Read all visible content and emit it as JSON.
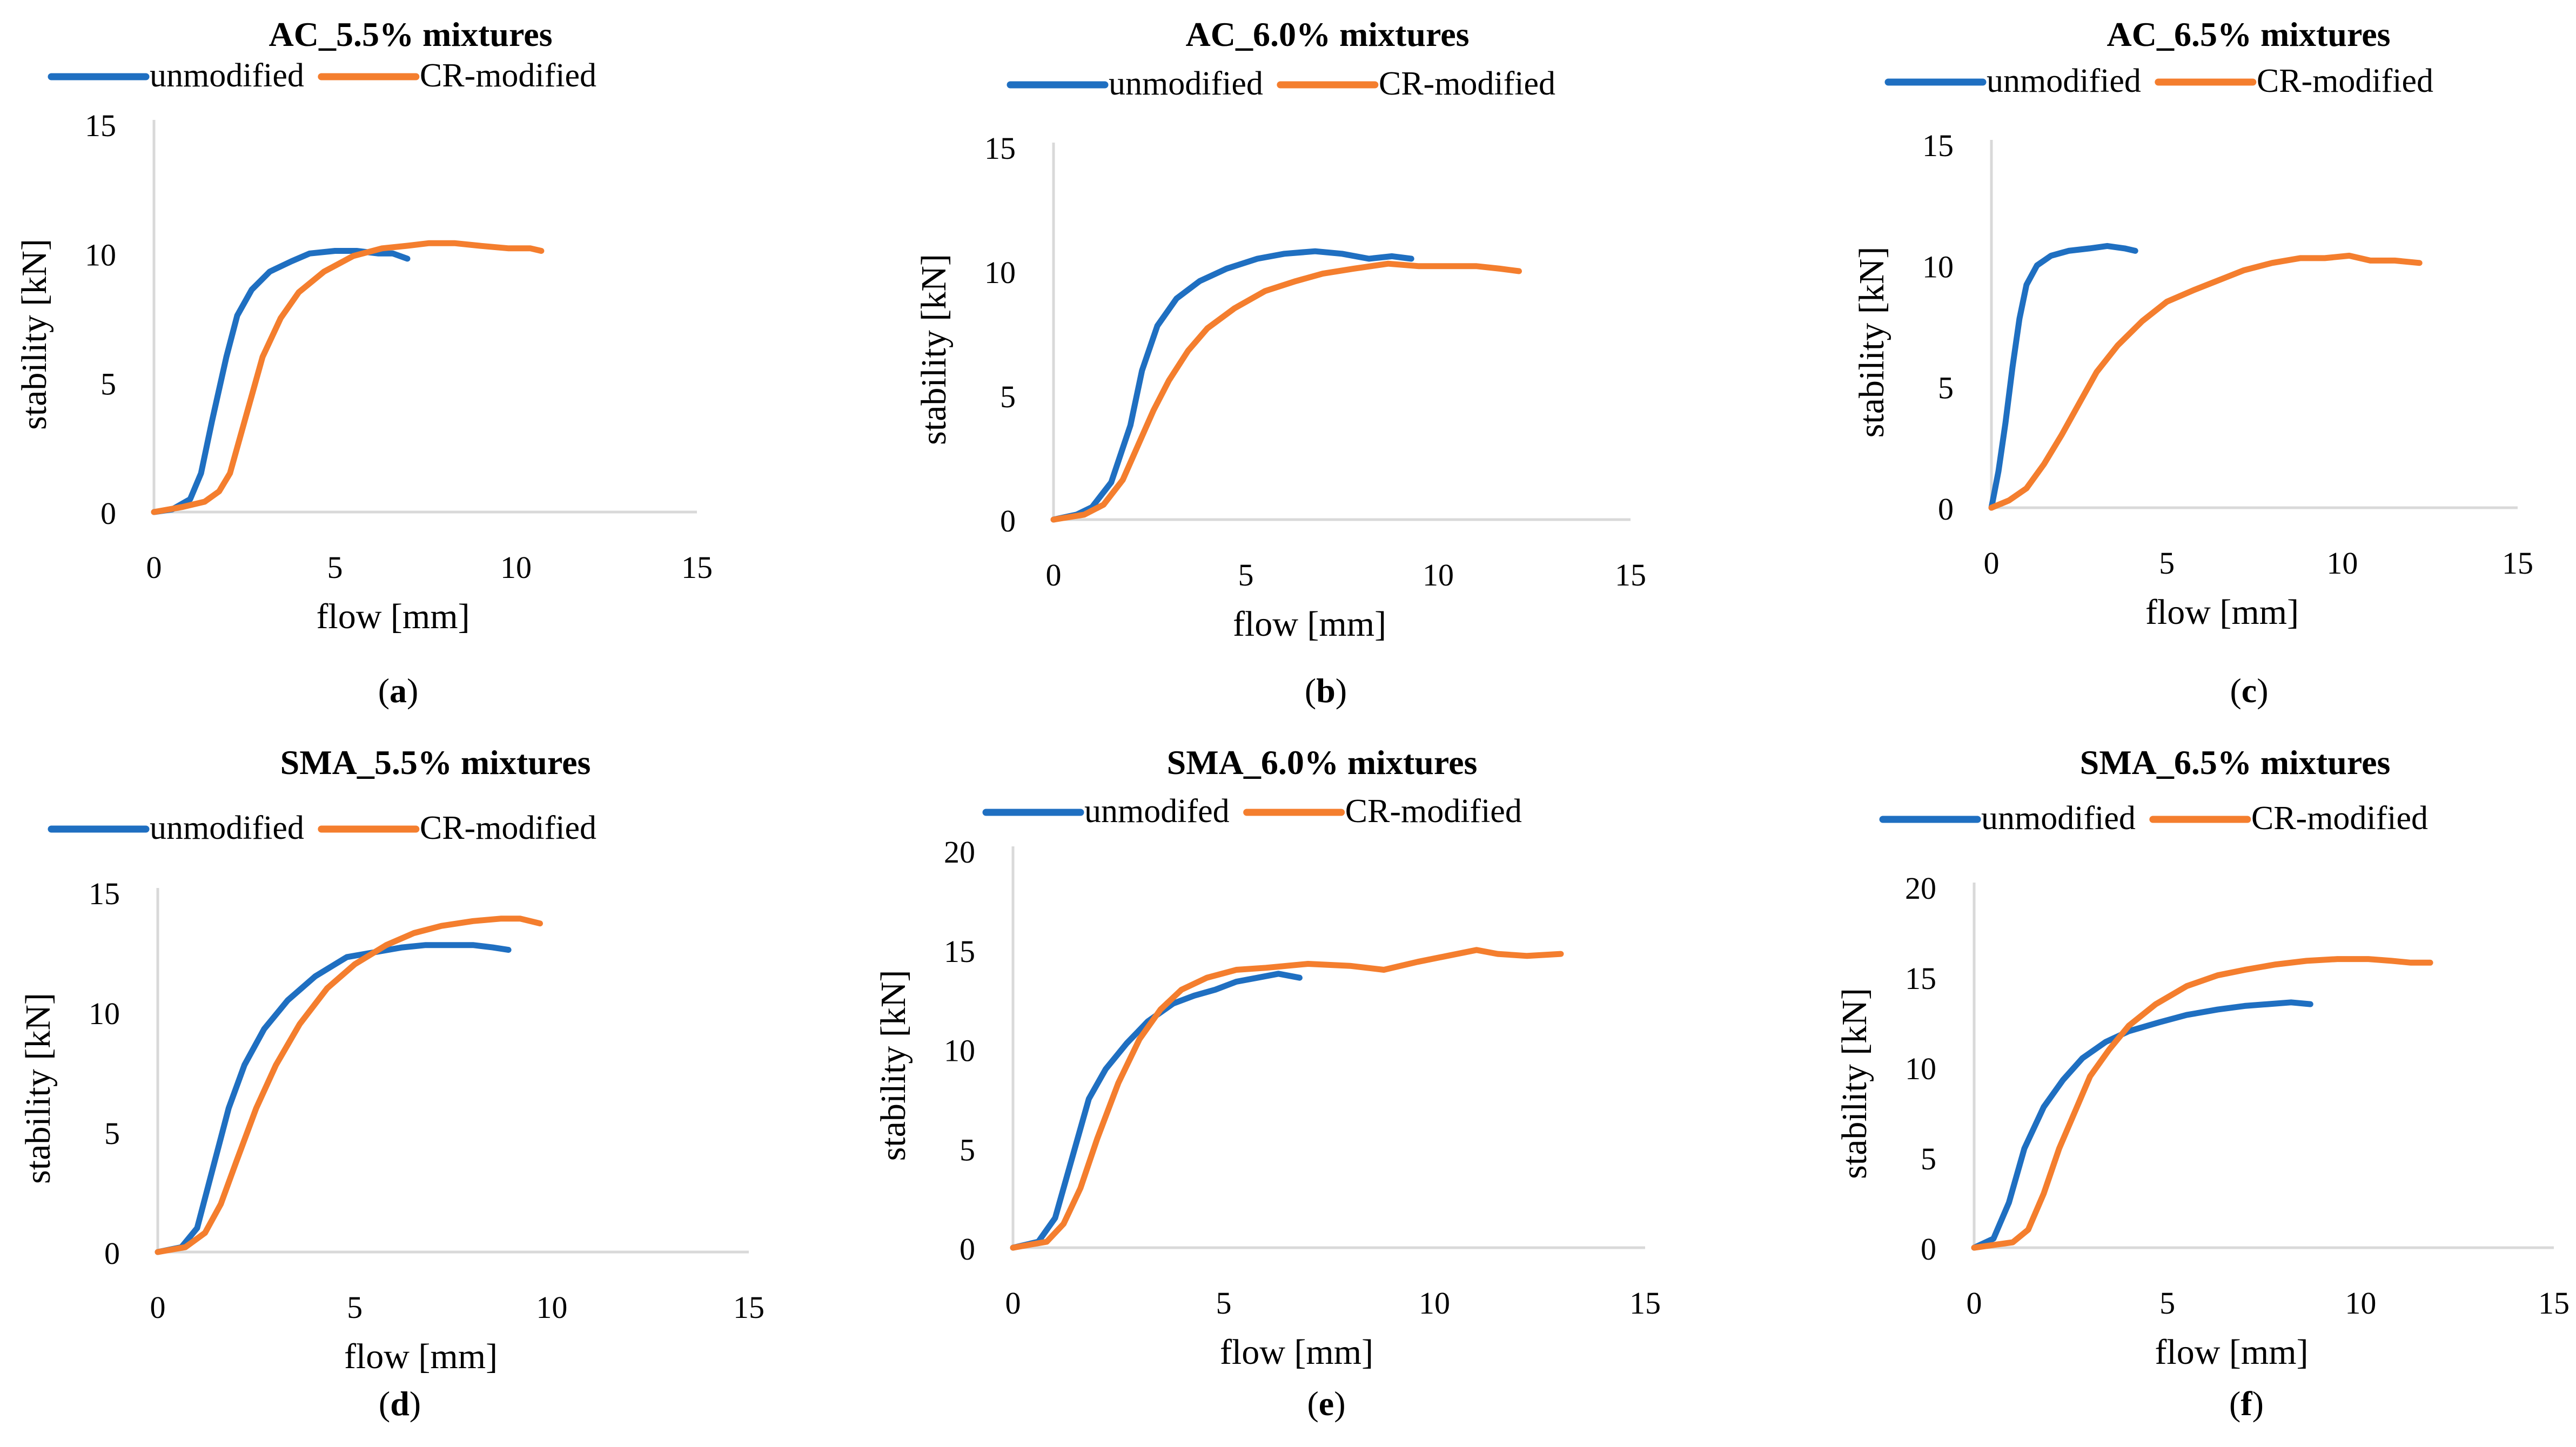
{
  "colors": {
    "unmodified": "#1F6FC1",
    "cr_modified": "#F47E2E",
    "axis": "#d9d9d9",
    "text": "#000000"
  },
  "chart_data": [
    {
      "type": "line",
      "panel_label": "a",
      "title": "AC_5.5% mixtures",
      "xlabel": "flow [mm]",
      "ylabel": "stability [kN]",
      "xlim": [
        0,
        15
      ],
      "ylim": [
        0,
        15
      ],
      "xticks": [
        0,
        5,
        10,
        15
      ],
      "yticks": [
        0,
        5,
        10,
        15
      ],
      "legend": [
        "unmodified",
        "CR-modified"
      ],
      "series": [
        {
          "name": "unmodified",
          "color": "#1F6FC1",
          "x": [
            0,
            0.5,
            1.0,
            1.3,
            1.6,
            2.0,
            2.3,
            2.7,
            3.2,
            3.8,
            4.3,
            5.0,
            5.6,
            6.2,
            6.6,
            7.0
          ],
          "y": [
            0,
            0.1,
            0.5,
            1.5,
            3.5,
            6.0,
            7.6,
            8.6,
            9.3,
            9.7,
            10.0,
            10.1,
            10.1,
            10.0,
            10.0,
            9.8
          ]
        },
        {
          "name": "CR-modified",
          "color": "#F47E2E",
          "x": [
            0,
            0.8,
            1.4,
            1.8,
            2.1,
            2.4,
            2.7,
            3.0,
            3.5,
            4.0,
            4.7,
            5.5,
            6.3,
            7.0,
            7.6,
            8.3,
            9.0,
            9.8,
            10.4,
            10.7
          ],
          "y": [
            0,
            0.2,
            0.4,
            0.8,
            1.5,
            3.0,
            4.5,
            6.0,
            7.5,
            8.5,
            9.3,
            9.9,
            10.2,
            10.3,
            10.4,
            10.4,
            10.3,
            10.2,
            10.2,
            10.1
          ]
        }
      ]
    },
    {
      "type": "line",
      "panel_label": "b",
      "title": "AC_6.0% mixtures",
      "xlabel": "flow [mm]",
      "ylabel": "stability [kN]",
      "xlim": [
        0,
        15
      ],
      "ylim": [
        0,
        15
      ],
      "xticks": [
        0,
        5,
        10,
        15
      ],
      "yticks": [
        0,
        5,
        10,
        15
      ],
      "legend": [
        "unmodified",
        "CR-modified"
      ],
      "series": [
        {
          "name": "unmodified",
          "color": "#1F6FC1",
          "x": [
            0,
            0.6,
            1.0,
            1.5,
            2.0,
            2.3,
            2.7,
            3.2,
            3.8,
            4.5,
            5.3,
            6.0,
            6.8,
            7.5,
            8.2,
            8.8,
            9.3
          ],
          "y": [
            0,
            0.2,
            0.5,
            1.5,
            3.8,
            6.0,
            7.8,
            8.9,
            9.6,
            10.1,
            10.5,
            10.7,
            10.8,
            10.7,
            10.5,
            10.6,
            10.5
          ]
        },
        {
          "name": "CR-modified",
          "color": "#F47E2E",
          "x": [
            0,
            0.8,
            1.3,
            1.8,
            2.2,
            2.6,
            3.0,
            3.5,
            4.0,
            4.7,
            5.5,
            6.3,
            7.0,
            7.8,
            8.7,
            9.5,
            10.3,
            11.0,
            11.6,
            12.1
          ],
          "y": [
            0,
            0.2,
            0.6,
            1.6,
            3.0,
            4.4,
            5.6,
            6.8,
            7.7,
            8.5,
            9.2,
            9.6,
            9.9,
            10.1,
            10.3,
            10.2,
            10.2,
            10.2,
            10.1,
            10.0
          ]
        }
      ]
    },
    {
      "type": "line",
      "panel_label": "c",
      "title": "AC_6.5% mixtures",
      "xlabel": "flow [mm]",
      "ylabel": "stability [kN]",
      "xlim": [
        0,
        15
      ],
      "ylim": [
        0,
        15
      ],
      "xticks": [
        0,
        5,
        10,
        15
      ],
      "yticks": [
        0,
        5,
        10,
        15
      ],
      "legend": [
        "unmodified",
        "CR-modified"
      ],
      "series": [
        {
          "name": "unmodified",
          "color": "#1F6FC1",
          "x": [
            0,
            0.2,
            0.4,
            0.6,
            0.8,
            1.0,
            1.3,
            1.7,
            2.2,
            2.8,
            3.3,
            3.8,
            4.1
          ],
          "y": [
            0,
            1.5,
            3.5,
            5.8,
            7.8,
            9.2,
            10.0,
            10.4,
            10.6,
            10.7,
            10.8,
            10.7,
            10.6
          ]
        },
        {
          "name": "CR-modified",
          "color": "#F47E2E",
          "x": [
            0,
            0.5,
            1.0,
            1.5,
            2.0,
            2.5,
            3.0,
            3.6,
            4.3,
            5.0,
            5.8,
            6.5,
            7.2,
            8.0,
            8.8,
            9.5,
            10.2,
            10.8,
            11.5,
            12.2
          ],
          "y": [
            0,
            0.3,
            0.8,
            1.8,
            3.0,
            4.3,
            5.6,
            6.7,
            7.7,
            8.5,
            9.0,
            9.4,
            9.8,
            10.1,
            10.3,
            10.3,
            10.4,
            10.2,
            10.2,
            10.1
          ]
        }
      ]
    },
    {
      "type": "line",
      "panel_label": "d",
      "title": "SMA_5.5% mixtures",
      "xlabel": "flow [mm]",
      "ylabel": "stability [kN]",
      "xlim": [
        0,
        15
      ],
      "ylim": [
        0,
        15
      ],
      "xticks": [
        0,
        5,
        10,
        15
      ],
      "yticks": [
        0,
        5,
        10,
        15
      ],
      "legend": [
        "unmodified",
        "CR-modified"
      ],
      "series": [
        {
          "name": "unmodified",
          "color": "#1F6FC1",
          "x": [
            0,
            0.6,
            1.0,
            1.4,
            1.8,
            2.2,
            2.7,
            3.3,
            4.0,
            4.8,
            5.5,
            6.2,
            6.8,
            7.5,
            8.0,
            8.5,
            8.9
          ],
          "y": [
            0,
            0.2,
            1.0,
            3.5,
            6.0,
            7.8,
            9.3,
            10.5,
            11.5,
            12.3,
            12.5,
            12.7,
            12.8,
            12.8,
            12.8,
            12.7,
            12.6
          ]
        },
        {
          "name": "CR-modified",
          "color": "#F47E2E",
          "x": [
            0,
            0.7,
            1.2,
            1.6,
            2.0,
            2.5,
            3.0,
            3.6,
            4.3,
            5.0,
            5.8,
            6.5,
            7.2,
            8.0,
            8.7,
            9.2,
            9.7
          ],
          "y": [
            0,
            0.2,
            0.8,
            2.0,
            3.8,
            6.0,
            7.8,
            9.5,
            11.0,
            12.0,
            12.8,
            13.3,
            13.6,
            13.8,
            13.9,
            13.9,
            13.7
          ]
        }
      ]
    },
    {
      "type": "line",
      "panel_label": "e",
      "title": "SMA_6.0% mixtures",
      "xlabel": "flow [mm]",
      "ylabel": "stability [kN]",
      "xlim": [
        0,
        15
      ],
      "ylim": [
        0,
        20
      ],
      "xticks": [
        0,
        5,
        10,
        15
      ],
      "yticks": [
        0,
        5,
        10,
        15,
        20
      ],
      "legend": [
        "unmodifed",
        "CR-modified"
      ],
      "series": [
        {
          "name": "unmodifed",
          "color": "#1F6FC1",
          "x": [
            0,
            0.6,
            1.0,
            1.4,
            1.8,
            2.2,
            2.7,
            3.2,
            3.8,
            4.3,
            4.8,
            5.3,
            5.8,
            6.3,
            6.8
          ],
          "y": [
            0,
            0.3,
            1.5,
            4.5,
            7.5,
            9.0,
            10.3,
            11.4,
            12.3,
            12.7,
            13.0,
            13.4,
            13.6,
            13.8,
            13.6
          ]
        },
        {
          "name": "CR-modified",
          "color": "#F47E2E",
          "x": [
            0,
            0.8,
            1.2,
            1.6,
            2.0,
            2.5,
            3.0,
            3.5,
            4.0,
            4.6,
            5.3,
            6.0,
            7.0,
            8.0,
            8.8,
            9.6,
            10.3,
            11.0,
            11.5,
            12.2,
            13.0
          ],
          "y": [
            0,
            0.3,
            1.2,
            3.0,
            5.5,
            8.3,
            10.5,
            12.0,
            13.0,
            13.6,
            14.0,
            14.1,
            14.3,
            14.2,
            14.0,
            14.4,
            14.7,
            15.0,
            14.8,
            14.7,
            14.8
          ]
        }
      ]
    },
    {
      "type": "line",
      "panel_label": "f",
      "title": "SMA_6.5% mixtures",
      "xlabel": "flow [mm]",
      "ylabel": "stability [kN]",
      "xlim": [
        0,
        15
      ],
      "ylim": [
        0,
        20
      ],
      "xticks": [
        0,
        5,
        10,
        15
      ],
      "yticks": [
        0,
        5,
        10,
        15,
        20
      ],
      "legend": [
        "unmodified",
        "CR-modified"
      ],
      "series": [
        {
          "name": "unmodified",
          "color": "#1F6FC1",
          "x": [
            0,
            0.5,
            0.9,
            1.3,
            1.8,
            2.3,
            2.8,
            3.4,
            4.0,
            4.8,
            5.5,
            6.3,
            7.0,
            7.6,
            8.2,
            8.7
          ],
          "y": [
            0,
            0.5,
            2.5,
            5.5,
            7.8,
            9.3,
            10.5,
            11.4,
            12.0,
            12.5,
            12.9,
            13.2,
            13.4,
            13.5,
            13.6,
            13.5
          ]
        },
        {
          "name": "CR-modified",
          "color": "#F47E2E",
          "x": [
            0,
            1.0,
            1.4,
            1.8,
            2.2,
            2.6,
            3.0,
            3.5,
            4.0,
            4.7,
            5.5,
            6.3,
            7.0,
            7.8,
            8.6,
            9.4,
            10.2,
            10.8,
            11.3,
            11.8
          ],
          "y": [
            0,
            0.3,
            1.0,
            3.0,
            5.5,
            7.5,
            9.5,
            11.0,
            12.3,
            13.5,
            14.5,
            15.1,
            15.4,
            15.7,
            15.9,
            16.0,
            16.0,
            15.9,
            15.8,
            15.8
          ]
        }
      ]
    }
  ]
}
